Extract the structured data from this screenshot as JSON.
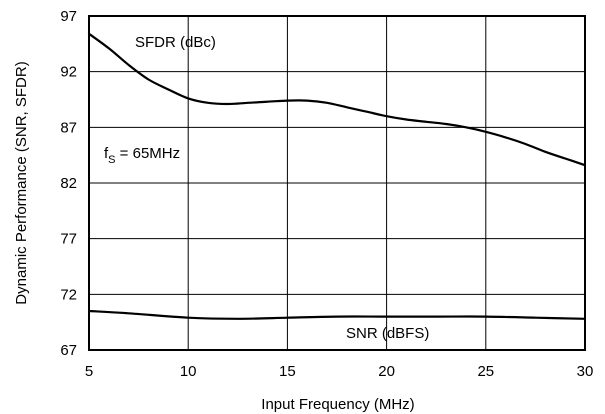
{
  "chart_data": {
    "type": "line",
    "title": "",
    "xlabel": "Input Frequency (MHz)",
    "ylabel": "Dynamic Performance (SNR, SFDR)",
    "xlim": [
      5,
      30
    ],
    "ylim": [
      67,
      97
    ],
    "xticks": [
      5,
      10,
      15,
      20,
      25,
      30
    ],
    "yticks": [
      67,
      72,
      77,
      82,
      87,
      92,
      97
    ],
    "grid": true,
    "legend": "none",
    "series": [
      {
        "name": "SFDR (dBc)",
        "x": [
          5,
          6,
          7,
          8,
          9,
          10,
          11,
          12,
          13,
          14,
          15,
          16,
          17,
          18,
          19,
          20,
          21,
          22,
          23,
          24,
          25,
          26,
          27,
          28,
          29,
          30
        ],
        "values": [
          95.4,
          94.1,
          92.6,
          91.3,
          90.4,
          89.6,
          89.2,
          89.1,
          89.2,
          89.3,
          89.4,
          89.4,
          89.2,
          88.8,
          88.4,
          88.0,
          87.7,
          87.5,
          87.3,
          87.0,
          86.6,
          86.1,
          85.5,
          84.8,
          84.2,
          83.6
        ]
      },
      {
        "name": "SNR (dBFS)",
        "x": [
          5,
          7,
          10,
          12.5,
          15,
          17.5,
          20,
          22.5,
          25,
          27.5,
          30
        ],
        "values": [
          70.5,
          70.3,
          69.9,
          69.8,
          69.9,
          70.0,
          70.0,
          70.0,
          70.0,
          69.9,
          69.8
        ]
      }
    ],
    "annotations": {
      "sfdr_label": "SFDR (dBc)",
      "snr_label": "SNR (dBFS)",
      "fs_prefix": "f",
      "fs_subscript": "S",
      "fs_value": " = 65MHz"
    }
  }
}
